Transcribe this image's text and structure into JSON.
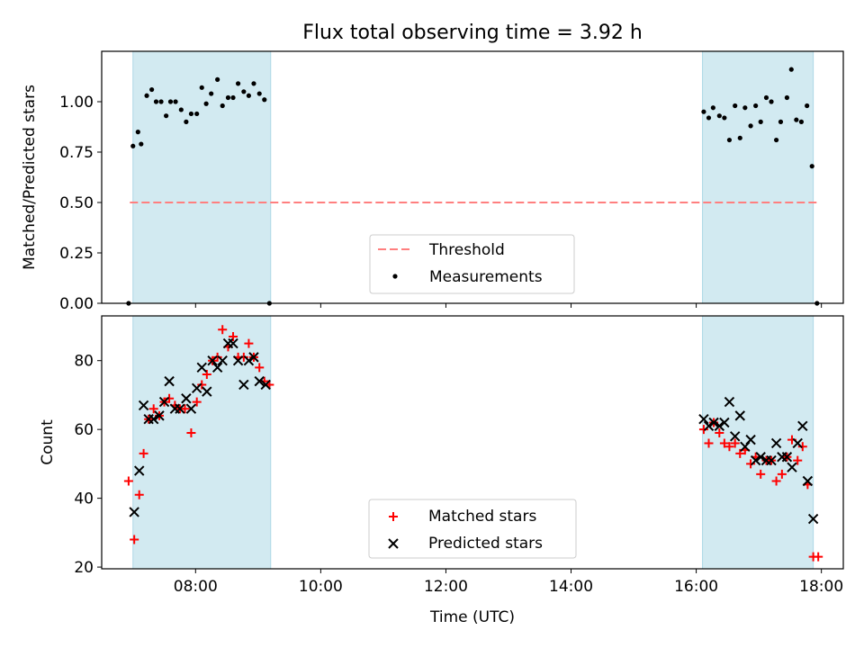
{
  "title": "Flux total observing time = 3.92 h",
  "colors": {
    "shade": "#add8e6",
    "threshold": "#ff7f7f",
    "measurement": "#000000",
    "matched": "#ff0000",
    "predicted": "#000000"
  },
  "chart_data": [
    {
      "type": "scatter",
      "ylabel": "Matched/Predicted stars",
      "xlim": [
        6.5,
        18.35
      ],
      "ylim": [
        0,
        1.25
      ],
      "yticks": [
        "0.00",
        "0.25",
        "0.50",
        "0.75",
        "1.00"
      ],
      "shaded_ranges": [
        [
          7.0,
          9.2
        ],
        [
          16.1,
          17.87
        ]
      ],
      "threshold": {
        "name": "Threshold",
        "value": 0.5,
        "x": [
          6.95,
          17.98
        ]
      },
      "series": [
        {
          "name": "Measurements",
          "x": [
            6.93,
            7.0,
            7.08,
            7.13,
            7.22,
            7.3,
            7.37,
            7.45,
            7.53,
            7.6,
            7.68,
            7.77,
            7.85,
            7.93,
            8.02,
            8.1,
            8.17,
            8.25,
            8.35,
            8.43,
            8.52,
            8.6,
            8.68,
            8.77,
            8.85,
            8.93,
            9.02,
            9.1,
            9.18,
            16.12,
            16.2,
            16.27,
            16.37,
            16.45,
            16.53,
            16.62,
            16.7,
            16.78,
            16.87,
            16.95,
            17.03,
            17.12,
            17.2,
            17.28,
            17.35,
            17.45,
            17.52,
            17.6,
            17.68,
            17.77,
            17.85,
            17.93
          ],
          "y": [
            0.0,
            0.78,
            0.85,
            0.79,
            1.03,
            1.06,
            1.0,
            1.0,
            0.93,
            1.0,
            1.0,
            0.96,
            0.9,
            0.94,
            0.94,
            1.07,
            0.99,
            1.04,
            1.11,
            0.98,
            1.02,
            1.02,
            1.09,
            1.05,
            1.03,
            1.09,
            1.04,
            1.01,
            0.0,
            0.95,
            0.92,
            0.97,
            0.93,
            0.92,
            0.81,
            0.98,
            0.82,
            0.97,
            0.88,
            0.98,
            0.9,
            1.02,
            1.0,
            0.81,
            0.9,
            1.02,
            1.16,
            0.91,
            0.9,
            0.98,
            0.68,
            0.0
          ]
        }
      ],
      "legend": {
        "position": "lower center",
        "entries": [
          "Threshold",
          "Measurements"
        ]
      }
    },
    {
      "type": "scatter",
      "xlabel": "Time (UTC)",
      "ylabel": "Count",
      "xlim": [
        6.5,
        18.35
      ],
      "ylim": [
        19.5,
        93
      ],
      "yticks": [
        "20",
        "40",
        "60",
        "80"
      ],
      "xticks": [
        "08:00",
        "10:00",
        "12:00",
        "14:00",
        "16:00",
        "18:00"
      ],
      "shaded_ranges": [
        [
          7.0,
          9.2
        ],
        [
          16.1,
          17.87
        ]
      ],
      "series": [
        {
          "name": "Matched stars",
          "marker": "plus",
          "x": [
            6.93,
            7.02,
            7.1,
            7.17,
            7.25,
            7.33,
            7.42,
            7.5,
            7.58,
            7.67,
            7.75,
            7.83,
            7.93,
            8.02,
            8.1,
            8.18,
            8.27,
            8.35,
            8.43,
            8.52,
            8.6,
            8.68,
            8.77,
            8.85,
            8.93,
            9.02,
            9.1,
            9.18,
            16.12,
            16.2,
            16.28,
            16.37,
            16.45,
            16.53,
            16.62,
            16.7,
            16.78,
            16.87,
            16.95,
            17.03,
            17.12,
            17.2,
            17.28,
            17.37,
            17.45,
            17.53,
            17.62,
            17.7,
            17.78,
            17.87,
            17.95
          ],
          "y": [
            45,
            28,
            41,
            53,
            63,
            66,
            64,
            68,
            69,
            67,
            66,
            66,
            59,
            68,
            73,
            76,
            80,
            81,
            89,
            84,
            87,
            81,
            81,
            85,
            81,
            78,
            74,
            73,
            60,
            56,
            62,
            59,
            56,
            55,
            56,
            53,
            54,
            50,
            52,
            47,
            51,
            51,
            45,
            47,
            52,
            57,
            51,
            55,
            44,
            23,
            23
          ]
        },
        {
          "name": "Predicted stars",
          "marker": "x",
          "x": [
            7.02,
            7.1,
            7.17,
            7.25,
            7.33,
            7.42,
            7.5,
            7.58,
            7.67,
            7.75,
            7.85,
            7.93,
            8.02,
            8.1,
            8.18,
            8.27,
            8.35,
            8.43,
            8.52,
            8.6,
            8.68,
            8.77,
            8.85,
            8.93,
            9.02,
            9.12,
            16.12,
            16.2,
            16.28,
            16.37,
            16.45,
            16.53,
            16.62,
            16.7,
            16.78,
            16.87,
            16.95,
            17.03,
            17.12,
            17.2,
            17.28,
            17.37,
            17.45,
            17.53,
            17.62,
            17.7,
            17.78,
            17.87
          ],
          "y": [
            36,
            48,
            67,
            63,
            63,
            64,
            68,
            74,
            66,
            66,
            69,
            66,
            72,
            78,
            71,
            80,
            78,
            80,
            85,
            85,
            80,
            73,
            80,
            81,
            74,
            73,
            63,
            61,
            62,
            61,
            62,
            68,
            58,
            64,
            55,
            57,
            51,
            52,
            51,
            51,
            56,
            52,
            52,
            49,
            56,
            61,
            45,
            34
          ]
        }
      ],
      "legend": {
        "position": "lower center",
        "entries": [
          "Matched stars",
          "Predicted stars"
        ]
      }
    }
  ]
}
